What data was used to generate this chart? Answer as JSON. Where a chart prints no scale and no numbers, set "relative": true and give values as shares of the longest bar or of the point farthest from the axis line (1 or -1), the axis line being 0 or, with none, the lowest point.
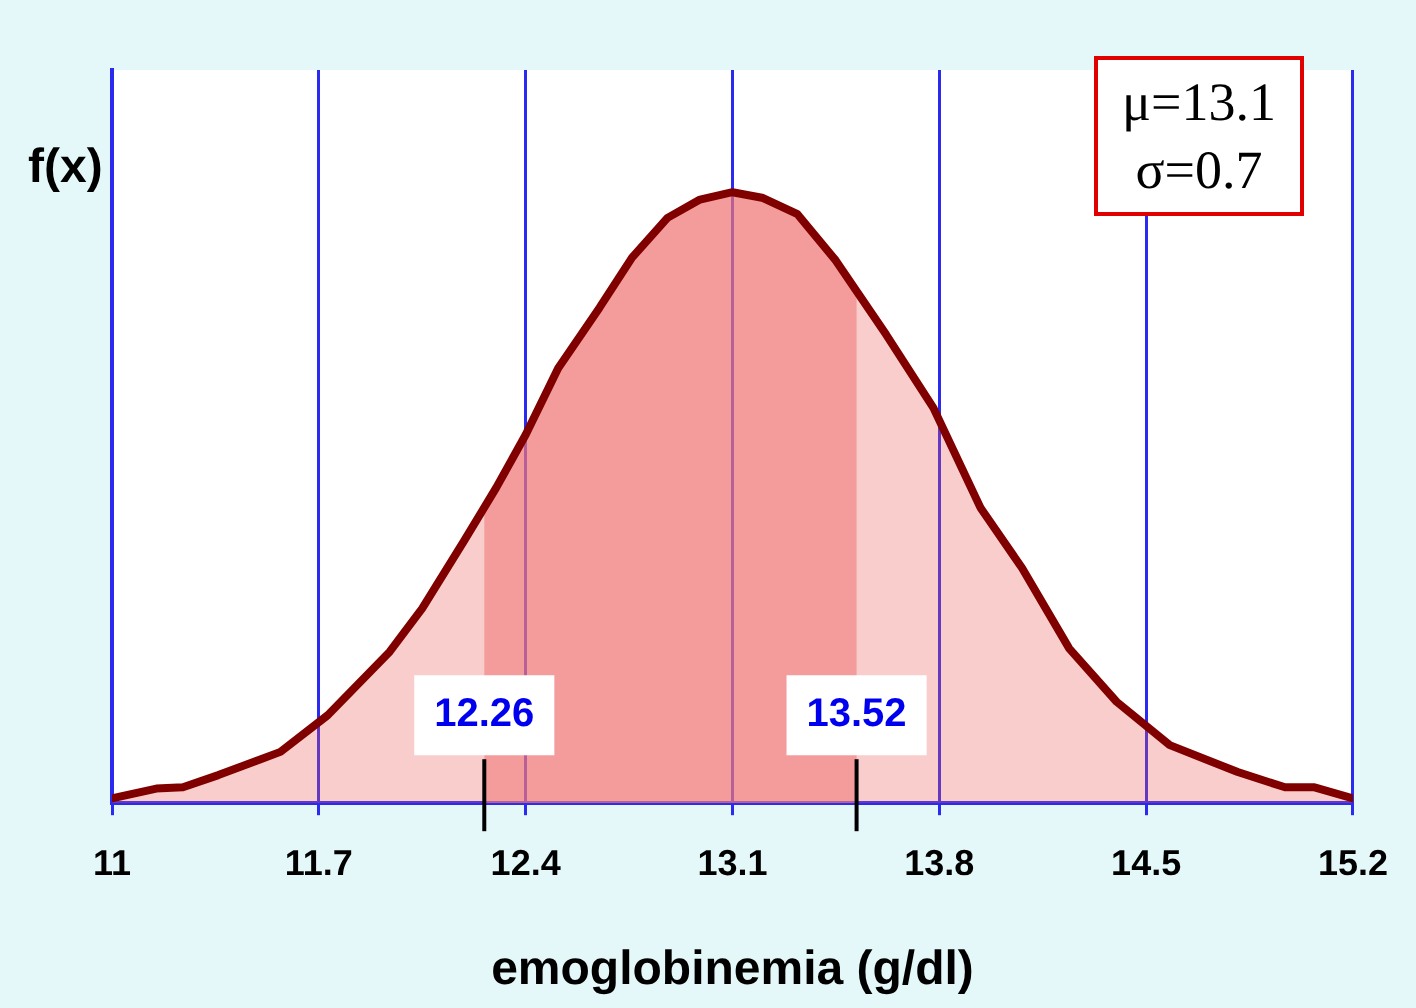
{
  "chart_data": {
    "type": "area",
    "xlabel": "emoglobinemia (g/dl)",
    "ylabel": "f(x)",
    "relative": true,
    "xlim": [
      11,
      15.2
    ],
    "xticks": [
      11,
      11.7,
      12.4,
      13.1,
      13.8,
      14.5,
      15.2
    ],
    "series": [
      {
        "color": "#800000",
        "x": [
          11,
          11.15,
          11.24,
          11.36,
          11.57,
          11.73,
          11.94,
          12.05,
          12.19,
          12.3,
          12.4,
          12.51,
          12.65,
          12.76,
          12.88,
          12.99,
          13.1,
          13.2,
          13.32,
          13.45,
          13.62,
          13.78,
          13.94,
          14.08,
          14.24,
          14.4,
          14.58,
          14.81,
          14.97,
          15.07,
          15.2
        ],
        "values": [
          0.008,
          0.024,
          0.026,
          0.046,
          0.084,
          0.144,
          0.248,
          0.319,
          0.428,
          0.516,
          0.603,
          0.712,
          0.811,
          0.893,
          0.958,
          0.988,
          1,
          0.991,
          0.964,
          0.888,
          0.767,
          0.647,
          0.483,
          0.385,
          0.253,
          0.166,
          0.095,
          0.051,
          0.026,
          0.026,
          0.008
        ]
      }
    ],
    "bands": [
      {
        "axis": "x",
        "from": 12.26,
        "to": 13.52,
        "color": "#f08a8a"
      }
    ],
    "ref_lines": [
      {
        "axis": "x",
        "value": 12.26,
        "label": "12.26"
      },
      {
        "axis": "x",
        "value": 13.52,
        "label": "13.52"
      }
    ],
    "annotations": [
      "μ=13.1",
      "σ=0.7"
    ],
    "grid": "x",
    "legend": false,
    "marker": "none",
    "line_style": "solid"
  }
}
